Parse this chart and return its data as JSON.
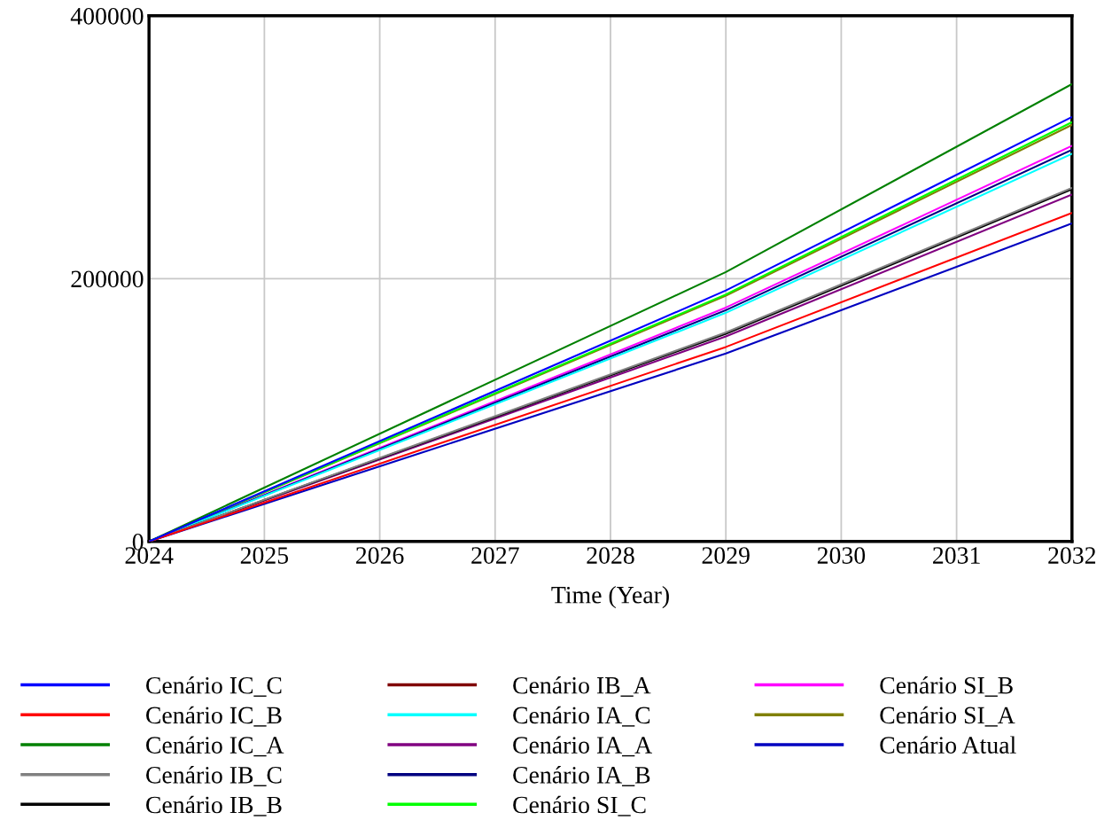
{
  "chart_data": {
    "type": "line",
    "xlabel": "Time (Year)",
    "x": [
      2024,
      2029,
      2032
    ],
    "series": [
      {
        "name": "Cenário IC_C",
        "color": "#0000ff",
        "values": [
          0,
          191000,
          323000
        ]
      },
      {
        "name": "Cenário IC_B",
        "color": "#ff0000",
        "values": [
          0,
          148000,
          250000
        ]
      },
      {
        "name": "Cenário IC_A",
        "color": "#008000",
        "values": [
          0,
          205000,
          348000
        ]
      },
      {
        "name": "Cenário IB_C",
        "color": "#808080",
        "values": [
          0,
          159000,
          269000
        ]
      },
      {
        "name": "Cenário IB_B",
        "color": "#000000",
        "values": [
          0,
          158000,
          268000
        ]
      },
      {
        "name": "Cenário IB_A",
        "color": "#800000",
        "values": [
          null,
          null,
          null
        ]
      },
      {
        "name": "Cenário IA_C",
        "color": "#00ffff",
        "values": [
          0,
          174000,
          295000
        ]
      },
      {
        "name": "Cenário IA_A",
        "color": "#800080",
        "values": [
          0,
          156000,
          264000
        ]
      },
      {
        "name": "Cenário IA_B",
        "color": "#000080",
        "values": [
          0,
          176000,
          298000
        ]
      },
      {
        "name": "Cenário SI_C",
        "color": "#00ff00",
        "values": [
          0,
          188000,
          319000
        ]
      },
      {
        "name": "Cenário SI_B",
        "color": "#ff00ff",
        "values": [
          0,
          178000,
          301000
        ]
      },
      {
        "name": "Cenário SI_A",
        "color": "#808000",
        "values": [
          0,
          187000,
          317000
        ]
      },
      {
        "name": "Cenário Atual",
        "color": "#0000c0",
        "values": [
          0,
          143000,
          242000
        ]
      }
    ],
    "xlim": [
      2024,
      2032
    ],
    "xticks": [
      2024,
      2025,
      2026,
      2027,
      2028,
      2029,
      2030,
      2031,
      2032
    ],
    "ylim": [
      0,
      400000
    ],
    "yticks": [
      0,
      200000,
      400000
    ],
    "grid": true,
    "legend": "bottom",
    "marker": "none",
    "line_style": "solid"
  }
}
